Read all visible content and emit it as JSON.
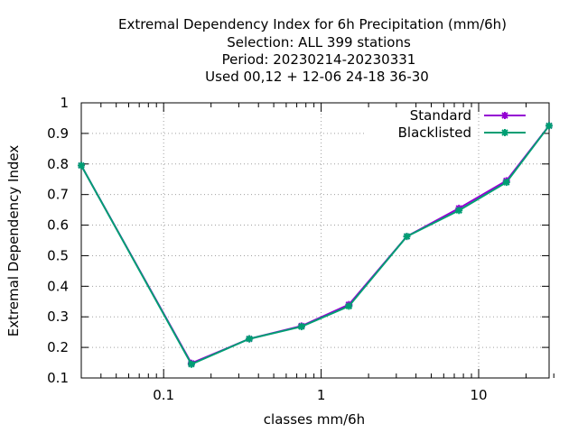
{
  "chart_data": {
    "type": "line",
    "title_lines": [
      "Extremal Dependency Index  for 6h Precipitation (mm/6h)",
      "Selection: ALL    399 stations",
      "Period: 20230214-20230331",
      "Used  00,12  + 12-06 24-18 36-30"
    ],
    "xlabel": "classes mm/6h",
    "ylabel": "Extremal Dependency Index",
    "xscale": "log",
    "xlim": [
      0.03,
      28
    ],
    "ylim": [
      0.1,
      1.0
    ],
    "x_ticks": [
      {
        "value": 0.1,
        "label": "0.1"
      },
      {
        "value": 1,
        "label": "1"
      },
      {
        "value": 10,
        "label": "10"
      }
    ],
    "y_ticks": [
      "0.1",
      "0.2",
      "0.3",
      "0.4",
      "0.5",
      "0.6",
      "0.7",
      "0.8",
      "0.9",
      "1"
    ],
    "grid": true,
    "legend_position": "top-right",
    "series": [
      {
        "name": "Standard",
        "color": "#9400d3",
        "x": [
          0.03,
          0.15,
          0.35,
          0.75,
          1.5,
          3.5,
          7.5,
          15,
          28
        ],
        "y": [
          0.795,
          0.148,
          0.228,
          0.27,
          0.34,
          0.563,
          0.655,
          0.745,
          0.925
        ]
      },
      {
        "name": "Blacklisted",
        "color": "#009e73",
        "x": [
          0.03,
          0.15,
          0.35,
          0.75,
          1.5,
          3.5,
          7.5,
          15,
          28
        ],
        "y": [
          0.795,
          0.145,
          0.228,
          0.268,
          0.335,
          0.563,
          0.648,
          0.74,
          0.925
        ]
      }
    ]
  }
}
